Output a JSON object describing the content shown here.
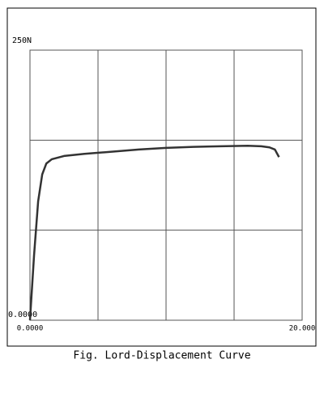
{
  "chart_data": {
    "type": "line",
    "title": "Fig. Lord-Displacement Curve",
    "xlim": [
      0,
      20
    ],
    "ylim": [
      0,
      250
    ],
    "xticks": [
      {
        "value": 0,
        "label": "0.0000"
      },
      {
        "value": 5,
        "label": null
      },
      {
        "value": 10,
        "label": null
      },
      {
        "value": 15,
        "label": null
      },
      {
        "value": 20,
        "label": "20.000"
      }
    ],
    "yticks": [
      {
        "value": 0,
        "label": "0.0000"
      },
      {
        "value": 83.33,
        "label": null
      },
      {
        "value": 166.67,
        "label": null
      },
      {
        "value": 250,
        "label": "250N"
      }
    ],
    "grid": true,
    "series": [
      {
        "name": null,
        "color": "#333333",
        "x": [
          0,
          0.3,
          0.6,
          0.9,
          1.2,
          1.6,
          2.5,
          4,
          6,
          8,
          10,
          12,
          14,
          16,
          17,
          17.6,
          18,
          18.3
        ],
        "values": [
          0,
          60,
          110,
          135,
          145,
          149,
          152,
          154,
          156,
          158,
          159.5,
          160.5,
          161,
          161.5,
          161,
          160,
          158,
          151
        ]
      }
    ]
  }
}
